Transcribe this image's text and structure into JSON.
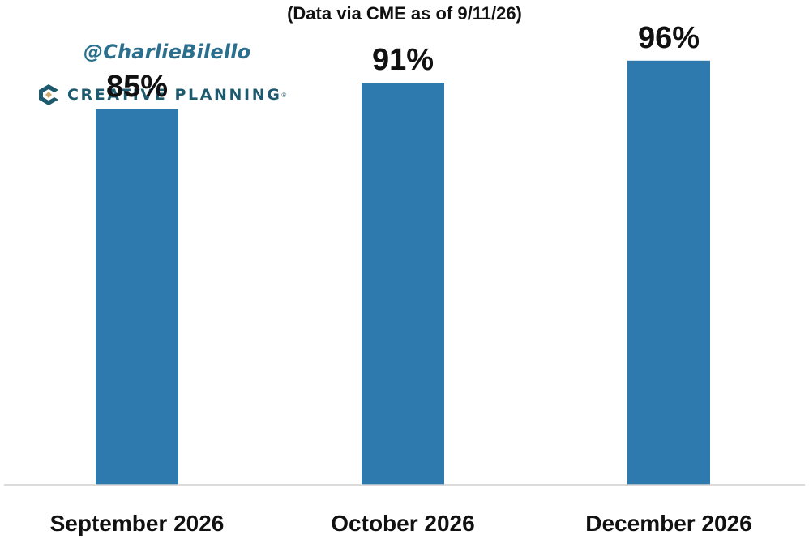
{
  "header": {
    "subtitle": "(Data via CME as of 9/11/26)",
    "handle": "@CharlieBilello",
    "brand": {
      "name": "CREATIVE PLANNING",
      "mark": "®"
    }
  },
  "colors": {
    "bar": "#2e7aae",
    "text": "#111111",
    "axis": "#cfcfcf",
    "brand": "#1e5a6e",
    "brand_accent": "#c9a96e"
  },
  "chart_data": {
    "type": "bar",
    "categories": [
      "September 2026",
      "October 2026",
      "December 2026"
    ],
    "values": [
      85,
      91,
      96
    ],
    "data_labels": [
      "85%",
      "91%",
      "96%"
    ],
    "ylim": [
      0,
      100
    ],
    "grid": false,
    "legend": "none"
  }
}
